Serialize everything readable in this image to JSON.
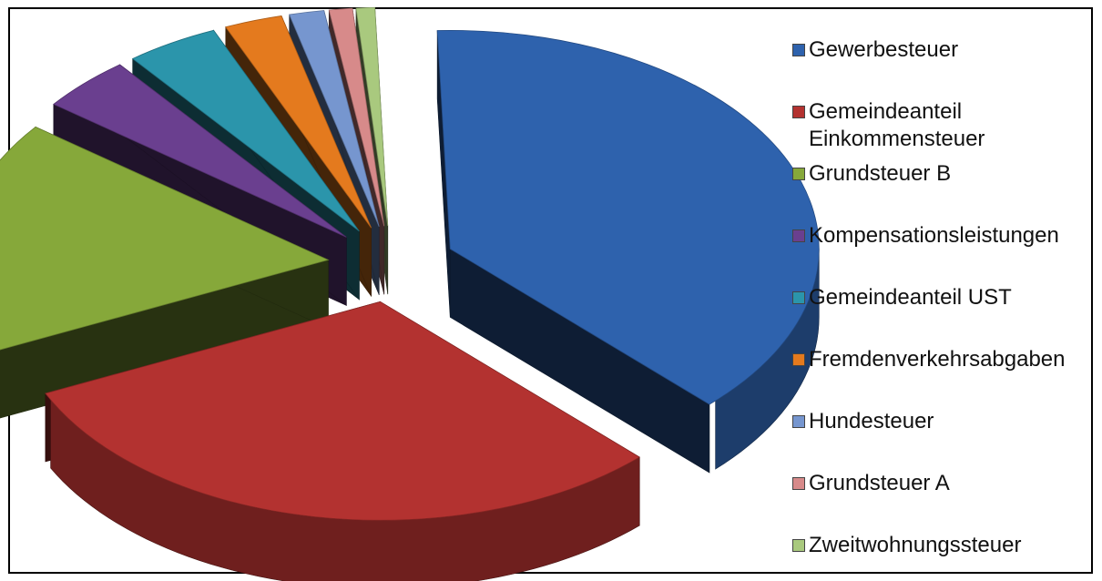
{
  "chart_data": {
    "type": "pie",
    "title": "",
    "style": "3d-exploded",
    "legend_position": "right",
    "categories": [
      "Gewerbesteuer",
      "Gemeindeanteil\nEinkommensteuer",
      "Grundsteuer B",
      "Kompensationsleistungen",
      "Gemeindeanteil UST",
      "Fremdenverkehrsabgaben",
      "Hundesteuer",
      "Grundsteuer A",
      "Zweitwohnungssteuer"
    ],
    "values": [
      37.5,
      30.0,
      17.0,
      4.0,
      4.0,
      2.5,
      1.5,
      1.0,
      0.8
    ],
    "colors": [
      "#2e62ad",
      "#b33230",
      "#86a83a",
      "#6a3f8f",
      "#2b95ab",
      "#e47a1e",
      "#7696cf",
      "#d78a8a",
      "#a9c97e"
    ]
  }
}
